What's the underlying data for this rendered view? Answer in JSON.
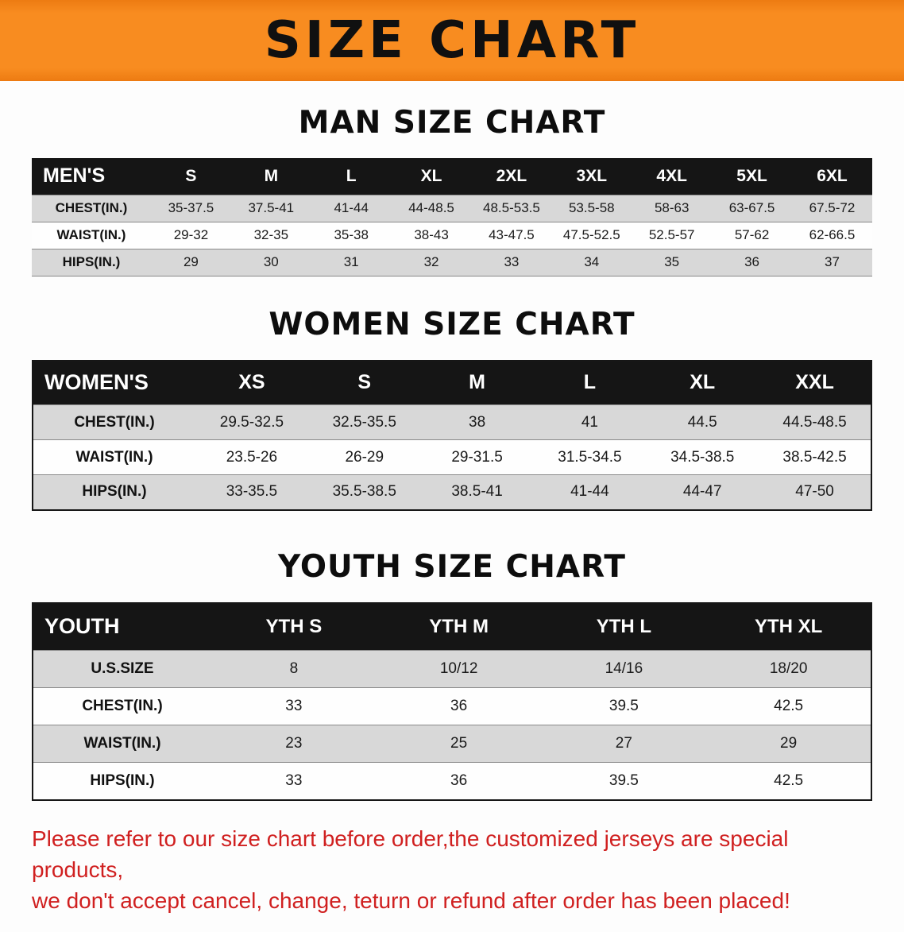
{
  "banner": {
    "title": "SIZE CHART",
    "background_color": "#f5831d",
    "text_color": "#101010"
  },
  "sections": [
    {
      "heading": "MAN SIZE CHART",
      "table": {
        "header": [
          "MEN'S",
          "S",
          "M",
          "L",
          "XL",
          "2XL",
          "3XL",
          "4XL",
          "5XL",
          "6XL"
        ],
        "rows": [
          {
            "label": "CHEST(IN.)",
            "values": [
              "35-37.5",
              "37.5-41",
              "41-44",
              "44-48.5",
              "48.5-53.5",
              "53.5-58",
              "58-63",
              "63-67.5",
              "67.5-72"
            ]
          },
          {
            "label": "WAIST(IN.)",
            "values": [
              "29-32",
              "32-35",
              "35-38",
              "38-43",
              "43-47.5",
              "47.5-52.5",
              "52.5-57",
              "57-62",
              "62-66.5"
            ]
          },
          {
            "label": "HIPS(IN.)",
            "values": [
              "29",
              "30",
              "31",
              "32",
              "33",
              "34",
              "35",
              "36",
              "37"
            ]
          }
        ]
      }
    },
    {
      "heading": "WOMEN SIZE CHART",
      "table": {
        "header": [
          "WOMEN'S",
          "XS",
          "S",
          "M",
          "L",
          "XL",
          "XXL"
        ],
        "rows": [
          {
            "label": "CHEST(IN.)",
            "values": [
              "29.5-32.5",
              "32.5-35.5",
              "38",
              "41",
              "44.5",
              "44.5-48.5"
            ]
          },
          {
            "label": "WAIST(IN.)",
            "values": [
              "23.5-26",
              "26-29",
              "29-31.5",
              "31.5-34.5",
              "34.5-38.5",
              "38.5-42.5"
            ]
          },
          {
            "label": "HIPS(IN.)",
            "values": [
              "33-35.5",
              "35.5-38.5",
              "38.5-41",
              "41-44",
              "44-47",
              "47-50"
            ]
          }
        ]
      }
    },
    {
      "heading": "YOUTH SIZE CHART",
      "table": {
        "header": [
          "YOUTH",
          "YTH S",
          "YTH M",
          "YTH L",
          "YTH XL"
        ],
        "rows": [
          {
            "label": "U.S.SIZE",
            "values": [
              "8",
              "10/12",
              "14/16",
              "18/20"
            ]
          },
          {
            "label": "CHEST(IN.)",
            "values": [
              "33",
              "36",
              "39.5",
              "42.5"
            ]
          },
          {
            "label": "WAIST(IN.)",
            "values": [
              "23",
              "25",
              "27",
              "29"
            ]
          },
          {
            "label": "HIPS(IN.)",
            "values": [
              "33",
              "36",
              "39.5",
              "42.5"
            ]
          }
        ]
      }
    }
  ],
  "footer": {
    "line1": "Please refer to our size chart before order,the customized jerseys are special products,",
    "line2": "we don't accept cancel, change, teturn or refund after order has been placed!",
    "text_color": "#d02020"
  }
}
